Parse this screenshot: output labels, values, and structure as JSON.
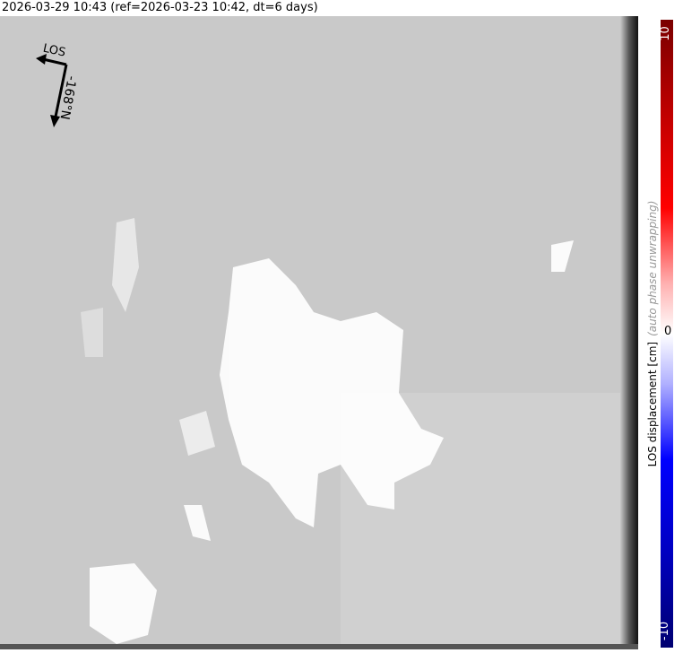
{
  "title": "2026-03-29 10:43 (ref=2026-03-23 10:42, dt=6 days)",
  "map": {
    "los_label": "LOS",
    "heading_label": "-168°N",
    "background_color": "#c9c9c9"
  },
  "colorbar": {
    "max_label": "10",
    "mid_label": "0",
    "min_label": "-10",
    "range": [
      -10,
      10
    ],
    "axis_label": "LOS displacement [cm]",
    "note": "(auto phase unwrapping)",
    "colormap": [
      "#000070",
      "#0000ff",
      "#ffffff",
      "#ff0000",
      "#7a0000"
    ]
  }
}
